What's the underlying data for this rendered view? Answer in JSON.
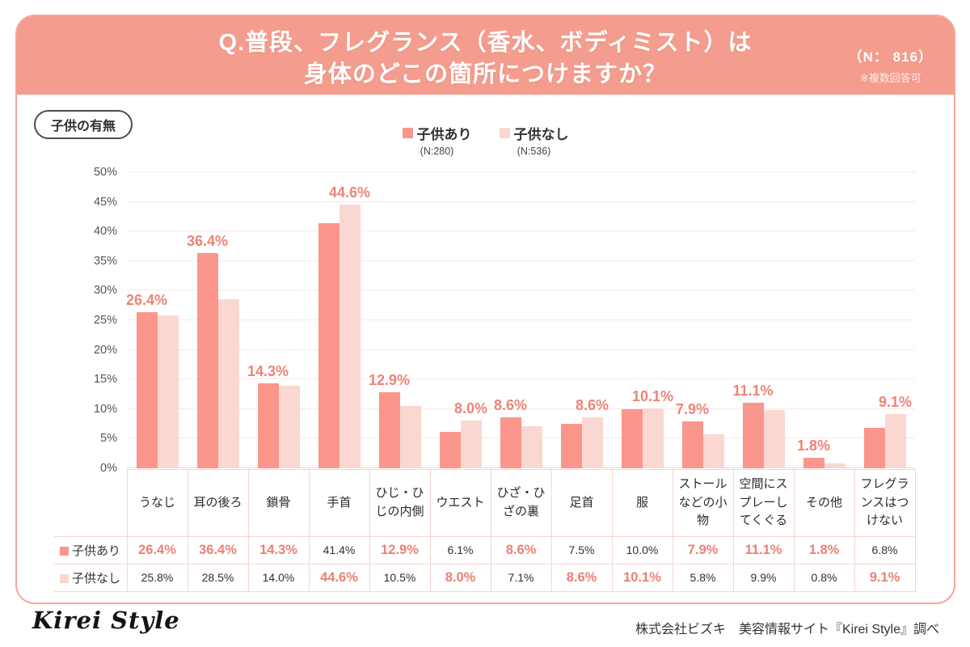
{
  "header": {
    "title_lines": [
      "Q.普段、フレグランス（香水、ボディミスト）は",
      "身体のどこの箇所につけますか？"
    ],
    "n_label": "（N： 816）",
    "note": "※複数回答可"
  },
  "group_badge": "子供の有無",
  "chart_data": {
    "type": "bar",
    "title": "Q.普段、フレグランス（香水、ボディミスト）は身体のどこの箇所につけますか？",
    "categories": [
      "うなじ",
      "耳の後ろ",
      "鎖骨",
      "手首",
      "ひじ・ひじの内側",
      "ウエスト",
      "ひざ・ひざの裏",
      "足首",
      "服",
      "ストールなどの小物",
      "空間にスプレーしてくぐる",
      "その他",
      "フレグランスはつけない"
    ],
    "series": [
      {
        "name": "子供あり",
        "n_label": "(N:280)",
        "color": "#fa968b",
        "values": [
          26.4,
          36.4,
          14.3,
          41.4,
          12.9,
          6.1,
          8.6,
          7.5,
          10.0,
          7.9,
          11.1,
          1.8,
          6.8
        ]
      },
      {
        "name": "子供なし",
        "n_label": "(N:536)",
        "color": "#fbd7d1",
        "values": [
          25.8,
          28.5,
          14.0,
          44.6,
          10.5,
          8.0,
          7.1,
          8.6,
          10.1,
          5.8,
          9.9,
          0.8,
          9.1
        ]
      }
    ],
    "bar_labels": [
      "26.4%",
      "36.4%",
      "14.3%",
      "44.6%",
      "12.9%",
      "8.0%",
      "8.6%",
      "8.6%",
      "10.1%",
      "7.9%",
      "11.1%",
      "1.8%",
      "9.1%"
    ],
    "ylim": [
      0,
      50
    ],
    "yticks": [
      "0%",
      "5%",
      "10%",
      "15%",
      "20%",
      "25%",
      "30%",
      "35%",
      "40%",
      "45%",
      "50%"
    ],
    "grid": true,
    "legend_position": "top"
  },
  "table": {
    "rows": [
      [
        "26.4%",
        "36.4%",
        "14.3%",
        "41.4%",
        "12.9%",
        "6.1%",
        "8.6%",
        "7.5%",
        "10.0%",
        "7.9%",
        "11.1%",
        "1.8%",
        "6.8%"
      ],
      [
        "25.8%",
        "28.5%",
        "14.0%",
        "44.6%",
        "10.5%",
        "8.0%",
        "7.1%",
        "8.6%",
        "10.1%",
        "5.8%",
        "9.9%",
        "0.8%",
        "9.1%"
      ]
    ],
    "emphasis": [
      [
        1,
        1,
        1,
        0,
        1,
        0,
        1,
        0,
        0,
        1,
        1,
        1,
        0
      ],
      [
        0,
        0,
        0,
        1,
        0,
        1,
        0,
        1,
        1,
        0,
        0,
        0,
        1
      ]
    ]
  },
  "footer": {
    "logo": "Kirei Style",
    "source": "株式会社ビズキ　美容情報サイト『Kirei Style』調べ"
  },
  "colors": {
    "header_bg": "#f49c8d",
    "card_border": "#f2a89d",
    "bar_dark": "#fa968b",
    "bar_light": "#fbd7d1",
    "value_label": "#ec8478",
    "grid": "#f8e9e8"
  }
}
